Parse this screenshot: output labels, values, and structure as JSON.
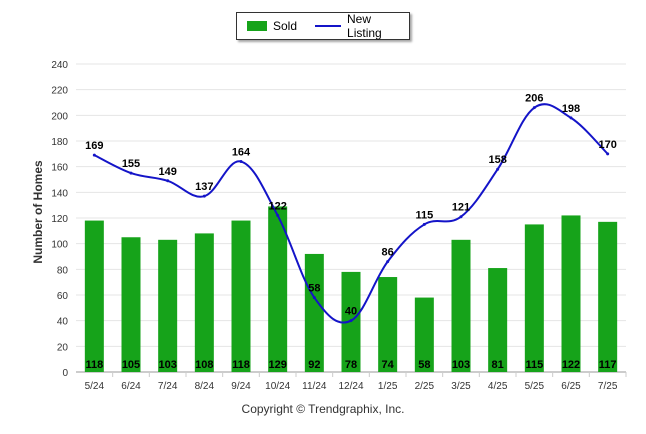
{
  "legend": {
    "sold_label": "Sold",
    "new_listing_label": "New Listing"
  },
  "colors": {
    "sold": "#16a31a",
    "new_listing": "#1414c8"
  },
  "footer": {
    "copyright": "Copyright © Trendgraphix, Inc."
  },
  "chart_data": {
    "type": "bar",
    "categories": [
      "5/24",
      "6/24",
      "7/24",
      "8/24",
      "9/24",
      "10/24",
      "11/24",
      "12/24",
      "1/25",
      "2/25",
      "3/25",
      "4/25",
      "5/25",
      "6/25",
      "7/25"
    ],
    "series": [
      {
        "name": "Sold",
        "type": "bar",
        "values": [
          118,
          105,
          103,
          108,
          118,
          129,
          92,
          78,
          74,
          58,
          103,
          81,
          115,
          122,
          117
        ]
      },
      {
        "name": "New Listing",
        "type": "line",
        "values": [
          169,
          155,
          149,
          137,
          164,
          122,
          58,
          40,
          86,
          115,
          121,
          158,
          206,
          198,
          170
        ]
      }
    ],
    "ylabel": "Number of Homes",
    "ylim": [
      0,
      240
    ],
    "yticks": [
      0,
      20,
      40,
      60,
      80,
      100,
      120,
      140,
      160,
      180,
      200,
      220,
      240
    ],
    "grid": true,
    "legend_position": "top-center"
  }
}
